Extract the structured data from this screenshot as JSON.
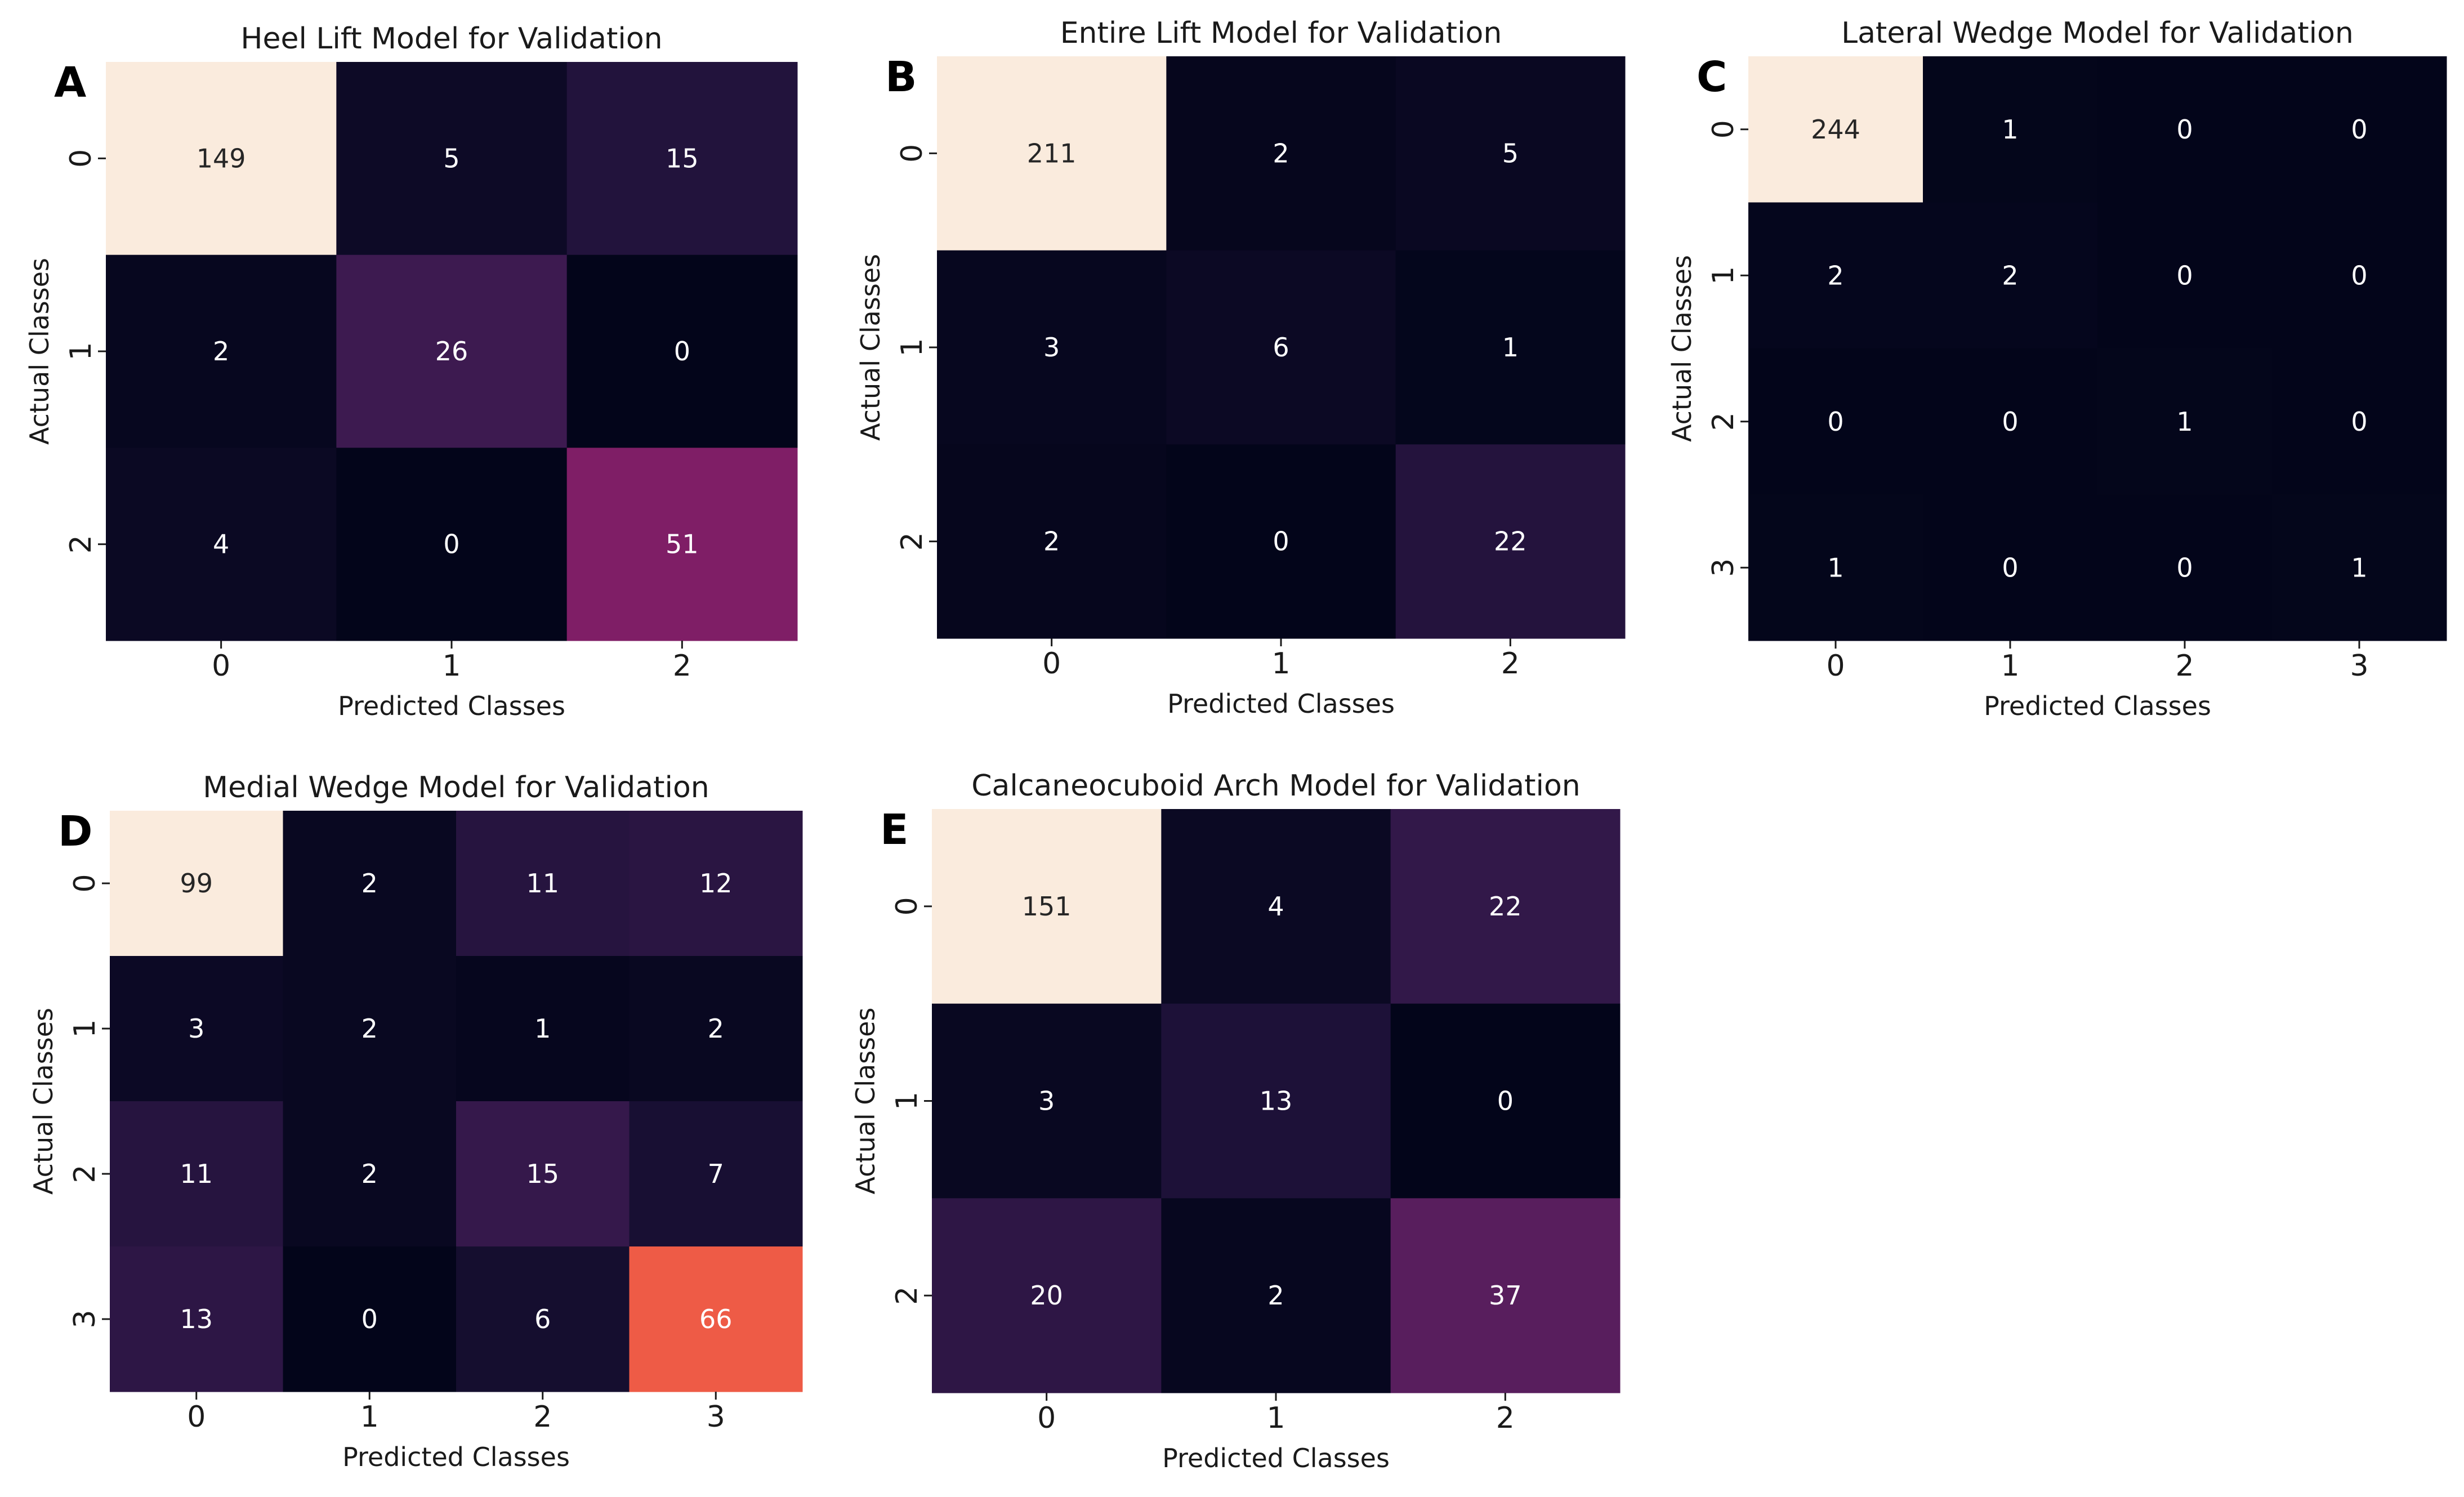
{
  "chart_data": [
    {
      "type": "heatmap",
      "panel": "A",
      "title": "Heel Lift Model for Validation",
      "xlabel": "Predicted Classes",
      "ylabel": "Actual Classes",
      "classes": [
        "0",
        "1",
        "2"
      ],
      "matrix": [
        [
          149,
          5,
          15
        ],
        [
          2,
          26,
          0
        ],
        [
          4,
          0,
          51
        ]
      ]
    },
    {
      "type": "heatmap",
      "panel": "B",
      "title": "Entire Lift Model for Validation",
      "xlabel": "Predicted Classes",
      "ylabel": "Actual Classes",
      "classes": [
        "0",
        "1",
        "2"
      ],
      "matrix": [
        [
          211,
          2,
          5
        ],
        [
          3,
          6,
          1
        ],
        [
          2,
          0,
          22
        ]
      ]
    },
    {
      "type": "heatmap",
      "panel": "C",
      "title": "Lateral Wedge Model for Validation",
      "xlabel": "Predicted Classes",
      "ylabel": "Actual Classes",
      "classes": [
        "0",
        "1",
        "2",
        "3"
      ],
      "matrix": [
        [
          244,
          1,
          0,
          0
        ],
        [
          2,
          2,
          0,
          0
        ],
        [
          0,
          0,
          1,
          0
        ],
        [
          1,
          0,
          0,
          1
        ]
      ]
    },
    {
      "type": "heatmap",
      "panel": "D",
      "title": "Medial Wedge Model for Validation",
      "xlabel": "Predicted Classes",
      "ylabel": "Actual Classes",
      "classes": [
        "0",
        "1",
        "2",
        "3"
      ],
      "matrix": [
        [
          99,
          2,
          11,
          12
        ],
        [
          3,
          2,
          1,
          2
        ],
        [
          11,
          2,
          15,
          7
        ],
        [
          13,
          0,
          6,
          66
        ]
      ]
    },
    {
      "type": "heatmap",
      "panel": "E",
      "title": "Calcaneocuboid Arch Model for Validation",
      "xlabel": "Predicted Classes",
      "ylabel": "Actual Classes",
      "classes": [
        "0",
        "1",
        "2"
      ],
      "matrix": [
        [
          151,
          4,
          22
        ],
        [
          3,
          13,
          0
        ],
        [
          20,
          2,
          37
        ]
      ]
    }
  ],
  "colormap": {
    "name": "rocket",
    "stops": [
      "#03051a",
      "#1c1137",
      "#3a1a4f",
      "#5a1e5e",
      "#7b1e66",
      "#9d1a62",
      "#be1f55",
      "#dc3b4b",
      "#ee5b46",
      "#f4835e",
      "#f6a987",
      "#f9cbb0",
      "#faebdd"
    ],
    "light_text": "#ffffff",
    "dark_text": "#262626"
  }
}
